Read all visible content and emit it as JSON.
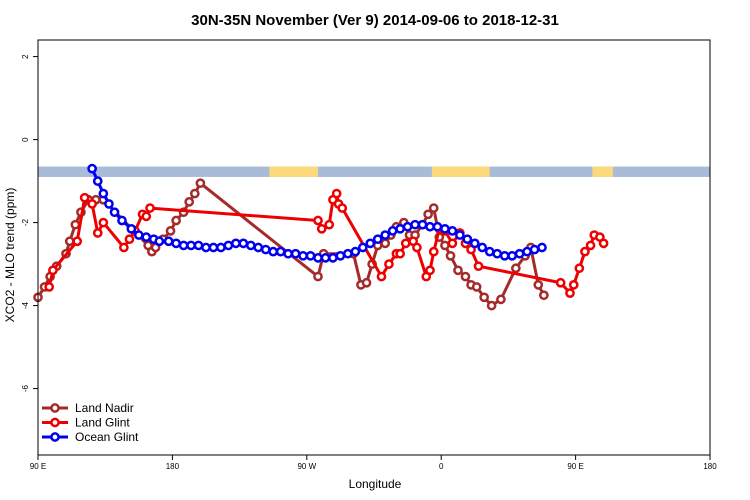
{
  "chart_data": {
    "type": "line",
    "title": "30N-35N November (Ver 9)   2014-09-06 to 2018-12-31",
    "xlabel": "Longitude",
    "ylabel": "XCO2 - MLO trend (ppm)",
    "xlim": [
      -90,
      270
    ],
    "ylim": [
      -7.6,
      2.4
    ],
    "x_ticks": [
      {
        "value": -90,
        "label": "90 E"
      },
      {
        "value": -18,
        "label": "180"
      },
      {
        "value": 54,
        "label": "90 W"
      },
      {
        "value": 126,
        "label": "0"
      },
      {
        "value": 198,
        "label": "90 E"
      },
      {
        "value": 270,
        "label": "180"
      }
    ],
    "y_ticks": [
      {
        "value": 2,
        "label": "2"
      },
      {
        "value": 0,
        "label": "0"
      },
      {
        "value": -2,
        "label": "-2"
      },
      {
        "value": -4,
        "label": "-4"
      },
      {
        "value": -6,
        "label": "-6"
      }
    ],
    "legend_position": "bottom-left",
    "grid": false,
    "land_mask_band": {
      "y_range": [
        -0.9,
        -0.65
      ],
      "ocean_color": "#a8bcd8",
      "land_color": "#fcd97a",
      "land_segments": [
        [
          34,
          60
        ],
        [
          121,
          152
        ],
        [
          207,
          218
        ]
      ]
    },
    "series": [
      {
        "name": "Land Nadir",
        "color": "#a52a2a",
        "x": [
          -90,
          -86.5,
          -83.5,
          -80,
          -75,
          -73,
          -70,
          -67,
          -63,
          -59,
          -55,
          -31,
          -29,
          -27,
          -23,
          -19,
          -16,
          -12,
          -9,
          -6,
          -3,
          60,
          63,
          79,
          83,
          86,
          89,
          92,
          96,
          99,
          102,
          106,
          109,
          112,
          116,
          119,
          122,
          125,
          128,
          131,
          135,
          139,
          142,
          145,
          149,
          153,
          158,
          166,
          171,
          174,
          178,
          181
        ],
        "y": [
          -3.8,
          -3.55,
          -3.3,
          -3.05,
          -2.75,
          -2.45,
          -2.05,
          -1.75,
          -1.45,
          -1.45,
          -1.45,
          -2.55,
          -2.7,
          -2.6,
          -2.4,
          -2.2,
          -1.95,
          -1.75,
          -1.5,
          -1.3,
          -1.05,
          -3.3,
          -2.75,
          -2.75,
          -3.5,
          -3.45,
          -3.0,
          -2.55,
          -2.5,
          -2.3,
          -2.1,
          -2.0,
          -2.3,
          -2.3,
          -2.05,
          -1.8,
          -1.65,
          -2.35,
          -2.55,
          -2.8,
          -3.15,
          -3.3,
          -3.5,
          -3.55,
          -3.8,
          -4.0,
          -3.85,
          -3.1,
          -2.8,
          -2.6,
          -3.5,
          -3.75
        ]
      },
      {
        "name": "Land Glint",
        "color": "#ee0000",
        "x": [
          -84,
          -82,
          -69,
          -65,
          -61,
          -58,
          -55,
          -44,
          -41,
          -38,
          -34,
          -32,
          -30,
          60,
          62,
          66,
          68,
          70,
          71,
          73,
          94,
          98,
          102,
          104,
          107,
          111,
          113,
          118,
          120,
          122,
          125,
          128,
          132,
          136,
          139,
          142,
          146,
          190,
          195,
          197,
          200,
          203,
          206,
          208,
          211,
          213
        ],
        "y": [
          -3.55,
          -3.15,
          -2.45,
          -1.4,
          -1.55,
          -2.25,
          -2.0,
          -2.6,
          -2.4,
          -2.2,
          -1.8,
          -1.85,
          -1.65,
          -1.95,
          -2.15,
          -2.05,
          -1.45,
          -1.3,
          -1.55,
          -1.65,
          -3.3,
          -3.0,
          -2.75,
          -2.75,
          -2.5,
          -2.45,
          -2.6,
          -3.3,
          -3.15,
          -2.7,
          -2.15,
          -2.2,
          -2.5,
          -2.25,
          -2.5,
          -2.65,
          -3.05,
          -3.45,
          -3.7,
          -3.5,
          -3.1,
          -2.7,
          -2.55,
          -2.3,
          -2.35,
          -2.5
        ]
      },
      {
        "name": "Ocean Glint",
        "color": "#0000ee",
        "x": [
          -61,
          -58,
          -55,
          -52,
          -49,
          -45,
          -40,
          -36,
          -32,
          -28,
          -25,
          -20,
          -16,
          -12,
          -8,
          -4,
          0,
          4,
          8,
          12,
          16,
          20,
          24,
          28,
          32,
          36,
          40,
          44,
          48,
          52,
          56,
          60,
          64,
          68,
          72,
          76,
          80,
          84,
          88,
          92,
          96,
          100,
          104,
          108,
          112,
          116,
          120,
          124,
          128,
          132,
          136,
          140,
          144,
          148,
          152,
          156,
          160,
          164,
          168,
          172,
          176,
          180
        ],
        "y": [
          -0.7,
          -1.0,
          -1.3,
          -1.55,
          -1.75,
          -1.95,
          -2.15,
          -2.3,
          -2.35,
          -2.4,
          -2.45,
          -2.45,
          -2.5,
          -2.55,
          -2.55,
          -2.55,
          -2.6,
          -2.6,
          -2.6,
          -2.55,
          -2.5,
          -2.5,
          -2.55,
          -2.6,
          -2.65,
          -2.7,
          -2.7,
          -2.75,
          -2.75,
          -2.8,
          -2.8,
          -2.85,
          -2.85,
          -2.85,
          -2.8,
          -2.75,
          -2.7,
          -2.6,
          -2.5,
          -2.4,
          -2.3,
          -2.2,
          -2.15,
          -2.1,
          -2.05,
          -2.05,
          -2.1,
          -2.1,
          -2.15,
          -2.2,
          -2.3,
          -2.4,
          -2.5,
          -2.6,
          -2.7,
          -2.75,
          -2.8,
          -2.8,
          -2.75,
          -2.7,
          -2.65,
          -2.6
        ]
      }
    ]
  }
}
